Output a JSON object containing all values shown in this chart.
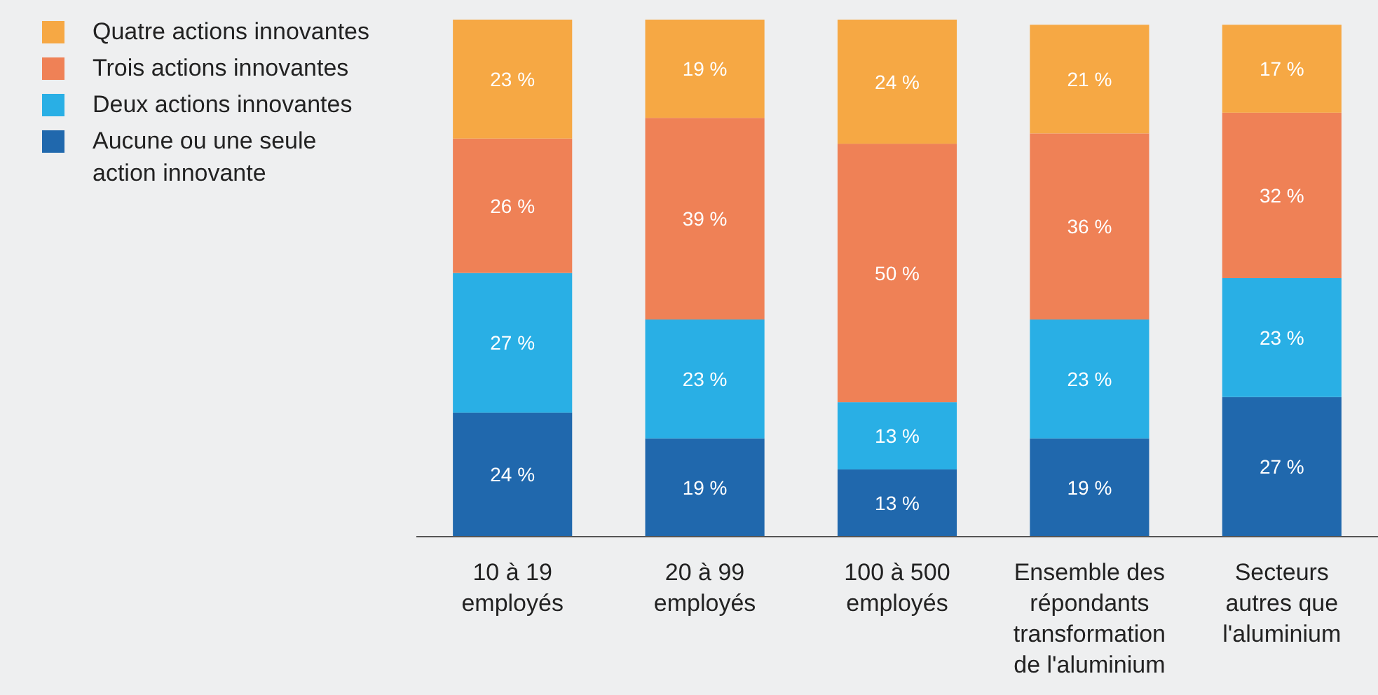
{
  "chart_data": {
    "type": "bar",
    "stacked": true,
    "legend": "top left",
    "categories": [
      "10 à 19 employés",
      "20 à 99 employés",
      "100 à 500 employés",
      "Ensemble des répondants transformation de l'aluminium",
      "Secteurs autres que l'aluminium"
    ],
    "series": [
      {
        "name": "Aucune ou une seule action innovante",
        "color": "#2068ad",
        "values": [
          24,
          19,
          13,
          19,
          27
        ],
        "value_labels": [
          "24 %",
          "19 %",
          "13 %",
          "19 %",
          "27 %"
        ]
      },
      {
        "name": "Deux actions innovantes",
        "color": "#29afe5",
        "values": [
          27,
          23,
          13,
          23,
          23
        ],
        "value_labels": [
          "27 %",
          "23 %",
          "13 %",
          "23 %",
          "23 %"
        ]
      },
      {
        "name": "Trois actions innovantes",
        "color": "#ef8156",
        "values": [
          26,
          39,
          50,
          36,
          32
        ],
        "value_labels": [
          "26 %",
          "39 %",
          "50 %",
          "36 %",
          "32 %"
        ]
      },
      {
        "name": "Quatre actions innovantes",
        "color": "#f6a844",
        "values": [
          23,
          19,
          24,
          21,
          17
        ],
        "value_labels": [
          "23 %",
          "19 %",
          "24 %",
          "21 %",
          "17 %"
        ]
      }
    ]
  }
}
